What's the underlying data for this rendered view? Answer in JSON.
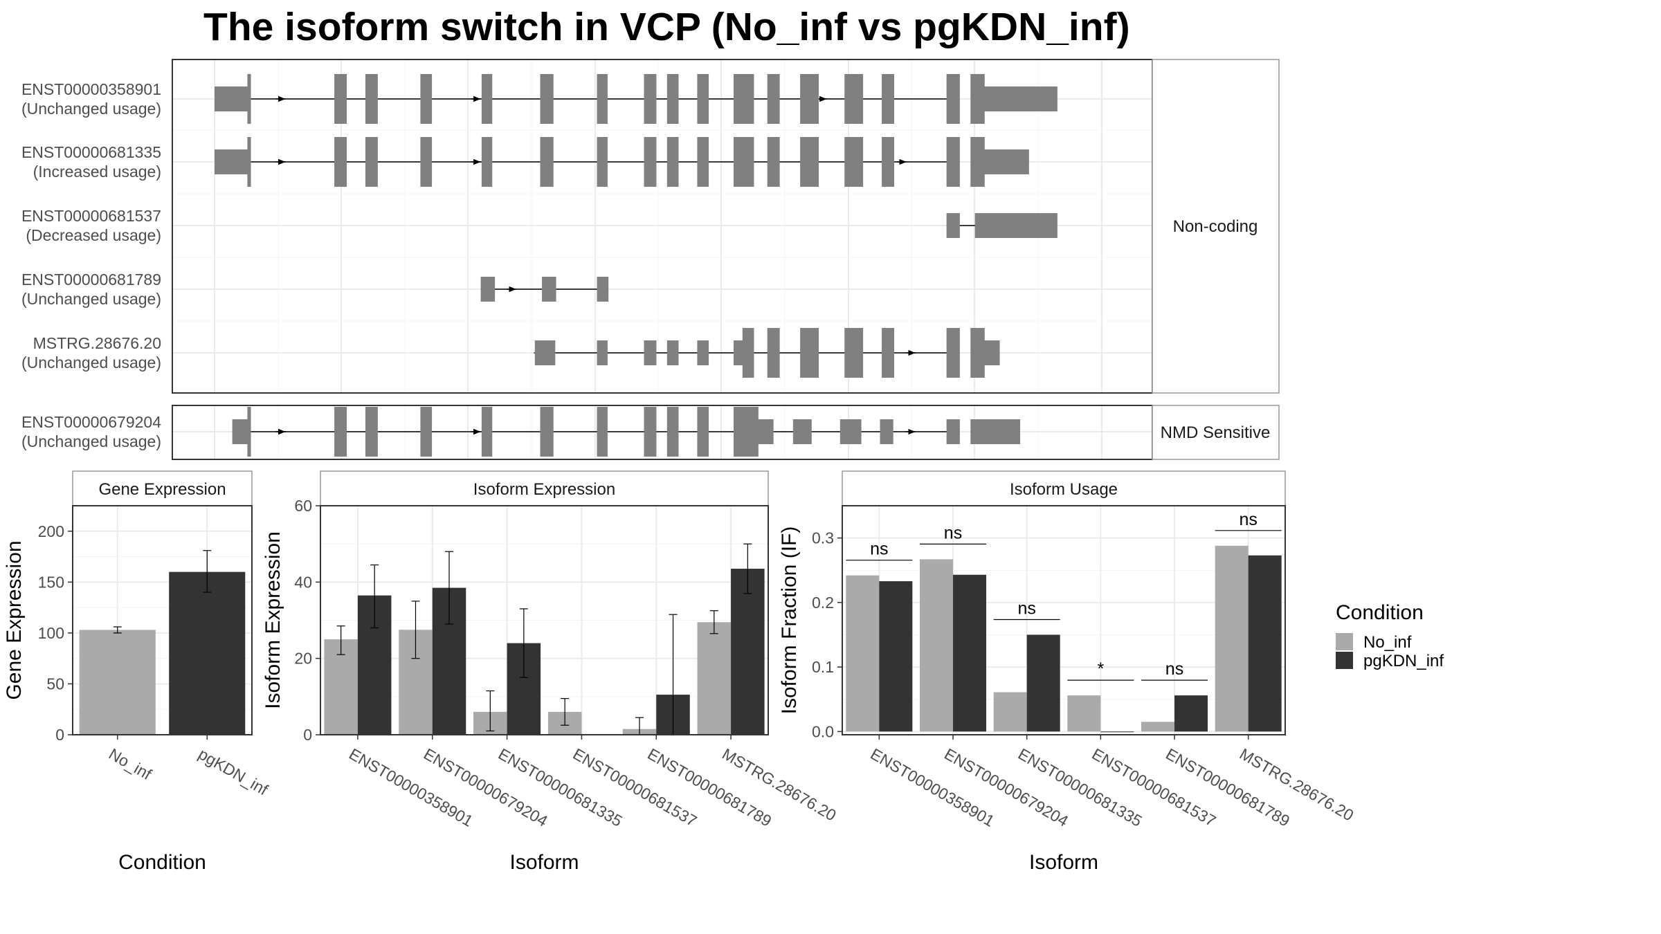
{
  "title": "The isoform switch in VCP (No_inf vs pgKDN_inf)",
  "colors": {
    "no_inf": "#aaaaaa",
    "pgkdn_inf": "#333333",
    "exon": "#808080",
    "grid": "#ebebeb",
    "panel_border": "#333333"
  },
  "structure": {
    "groups": [
      {
        "label": "Non-coding",
        "transcripts": [
          {
            "id": "ENST00000358901",
            "usage": "(Unchanged usage)",
            "span": [
              0.0,
              0.83
            ],
            "exons": [
              [
                0.0,
                0.038,
                "s"
              ],
              [
                0.037,
                0.041,
                "t"
              ],
              [
                0.135,
                0.149,
                "t"
              ],
              [
                0.17,
                0.184,
                "t"
              ],
              [
                0.232,
                0.245,
                "t"
              ],
              [
                0.301,
                0.313,
                "t"
              ],
              [
                0.367,
                0.382,
                "t"
              ],
              [
                0.431,
                0.443,
                "t"
              ],
              [
                0.484,
                0.498,
                "t"
              ],
              [
                0.51,
                0.523,
                "t"
              ],
              [
                0.544,
                0.557,
                "t"
              ],
              [
                0.585,
                0.608,
                "t"
              ],
              [
                0.623,
                0.637,
                "t"
              ],
              [
                0.66,
                0.681,
                "t"
              ],
              [
                0.71,
                0.731,
                "t"
              ],
              [
                0.752,
                0.766,
                "t"
              ],
              [
                0.825,
                0.84,
                "t"
              ],
              [
                0.852,
                0.868,
                "t"
              ],
              [
                0.865,
                0.95,
                "s"
              ]
            ],
            "arrows": [
              0.08,
              0.3,
              0.69
            ]
          },
          {
            "id": "ENST00000681335",
            "usage": "(Increased usage)",
            "span": [
              0.0,
              0.83
            ],
            "exons": [
              [
                0.0,
                0.038,
                "s"
              ],
              [
                0.037,
                0.041,
                "t"
              ],
              [
                0.135,
                0.149,
                "t"
              ],
              [
                0.17,
                0.184,
                "t"
              ],
              [
                0.232,
                0.245,
                "t"
              ],
              [
                0.301,
                0.313,
                "t"
              ],
              [
                0.367,
                0.382,
                "t"
              ],
              [
                0.431,
                0.443,
                "t"
              ],
              [
                0.484,
                0.498,
                "t"
              ],
              [
                0.51,
                0.523,
                "t"
              ],
              [
                0.544,
                0.557,
                "t"
              ],
              [
                0.585,
                0.608,
                "t"
              ],
              [
                0.623,
                0.637,
                "t"
              ],
              [
                0.66,
                0.681,
                "t"
              ],
              [
                0.71,
                0.731,
                "t"
              ],
              [
                0.752,
                0.766,
                "t"
              ],
              [
                0.825,
                0.84,
                "t"
              ],
              [
                0.852,
                0.868,
                "t"
              ],
              [
                0.865,
                0.918,
                "s"
              ]
            ],
            "arrows": [
              0.08,
              0.3,
              0.78
            ]
          },
          {
            "id": "ENST00000681537",
            "usage": "(Decreased usage)",
            "span": [
              0.825,
              0.86
            ],
            "exons": [
              [
                0.825,
                0.84,
                "s"
              ],
              [
                0.857,
                0.95,
                "s"
              ]
            ],
            "arrows": []
          },
          {
            "id": "ENST00000681789",
            "usage": "(Unchanged usage)",
            "span": [
              0.3,
              0.44
            ],
            "exons": [
              [
                0.3,
                0.316,
                "s"
              ],
              [
                0.369,
                0.385,
                "s"
              ],
              [
                0.431,
                0.444,
                "s"
              ]
            ],
            "arrows": [
              0.34
            ]
          },
          {
            "id": "MSTRG.28676.20",
            "usage": "(Unchanged usage)",
            "span": [
              0.36,
              0.83
            ],
            "exons": [
              [
                0.361,
                0.384,
                "s"
              ],
              [
                0.431,
                0.443,
                "s"
              ],
              [
                0.484,
                0.498,
                "s"
              ],
              [
                0.51,
                0.523,
                "s"
              ],
              [
                0.544,
                0.557,
                "s"
              ],
              [
                0.585,
                0.597,
                "s"
              ],
              [
                0.595,
                0.608,
                "t"
              ],
              [
                0.623,
                0.637,
                "t"
              ],
              [
                0.66,
                0.681,
                "t"
              ],
              [
                0.71,
                0.731,
                "t"
              ],
              [
                0.752,
                0.766,
                "t"
              ],
              [
                0.825,
                0.84,
                "t"
              ],
              [
                0.852,
                0.868,
                "t"
              ],
              [
                0.866,
                0.885,
                "s"
              ]
            ],
            "arrows": [
              0.79
            ]
          }
        ]
      },
      {
        "label": "NMD Sensitive",
        "transcripts": [
          {
            "id": "ENST00000679204",
            "usage": "(Unchanged usage)",
            "span": [
              0.02,
              0.83
            ],
            "exons": [
              [
                0.02,
                0.038,
                "s"
              ],
              [
                0.037,
                0.041,
                "t"
              ],
              [
                0.135,
                0.149,
                "t"
              ],
              [
                0.17,
                0.184,
                "t"
              ],
              [
                0.232,
                0.245,
                "t"
              ],
              [
                0.301,
                0.313,
                "t"
              ],
              [
                0.367,
                0.382,
                "t"
              ],
              [
                0.431,
                0.443,
                "t"
              ],
              [
                0.484,
                0.498,
                "t"
              ],
              [
                0.51,
                0.523,
                "t"
              ],
              [
                0.544,
                0.557,
                "t"
              ],
              [
                0.585,
                0.61,
                "t"
              ],
              [
                0.608,
                0.613,
                "t"
              ],
              [
                0.612,
                0.63,
                "s"
              ],
              [
                0.652,
                0.673,
                "s"
              ],
              [
                0.705,
                0.729,
                "s"
              ],
              [
                0.75,
                0.765,
                "s"
              ],
              [
                0.825,
                0.84,
                "s"
              ],
              [
                0.852,
                0.908,
                "s"
              ]
            ],
            "arrows": [
              0.08,
              0.3,
              0.79
            ]
          }
        ]
      }
    ]
  },
  "chart_data": [
    {
      "type": "bar",
      "title": "Gene Expression",
      "xlabel": "Condition",
      "ylabel": "Gene Expression",
      "ylim": [
        0,
        225
      ],
      "yticks": [
        0,
        50,
        100,
        150,
        200
      ],
      "categories": [
        "No_inf",
        "pgKDN_inf"
      ],
      "values": [
        103,
        160
      ],
      "errors": [
        [
          100,
          106
        ],
        [
          140,
          181
        ]
      ]
    },
    {
      "type": "bar",
      "title": "Isoform Expression",
      "xlabel": "Isoform",
      "ylabel": "Isoform Expression",
      "ylim": [
        0,
        60
      ],
      "yticks": [
        0,
        20,
        40,
        60
      ],
      "categories": [
        "ENST00000358901",
        "ENST00000679204",
        "ENST00000681335",
        "ENST00000681537",
        "ENST00000681789",
        "MSTRG.28676.20"
      ],
      "series": [
        {
          "name": "No_inf",
          "values": [
            25,
            27.5,
            6,
            6,
            1.5,
            29.5
          ],
          "errors": [
            [
              21,
              28.5
            ],
            [
              20,
              35
            ],
            [
              1,
              11.5
            ],
            [
              2.5,
              9.5
            ],
            [
              0,
              4.5
            ],
            [
              26.5,
              32.5
            ]
          ]
        },
        {
          "name": "pgKDN_inf",
          "values": [
            36.5,
            38.5,
            24,
            0,
            10.5,
            43.5
          ],
          "errors": [
            [
              28,
              44.5
            ],
            [
              29,
              48
            ],
            [
              15,
              33
            ],
            [
              0,
              0
            ],
            [
              0,
              31.5
            ],
            [
              37,
              50
            ]
          ]
        }
      ]
    },
    {
      "type": "bar",
      "title": "Isoform Usage",
      "xlabel": "Isoform",
      "ylabel": "Isoform Fraction (IF)",
      "ylim": [
        -0.005,
        0.35
      ],
      "yticks": [
        0.0,
        0.1,
        0.2,
        0.3
      ],
      "ytick_labels": [
        "0.0",
        "0.1",
        "0.2",
        "0.3"
      ],
      "categories": [
        "ENST00000358901",
        "ENST00000679204",
        "ENST00000681335",
        "ENST00000681537",
        "ENST00000681789",
        "MSTRG.28676.20"
      ],
      "series": [
        {
          "name": "No_inf",
          "values": [
            0.242,
            0.267,
            0.061,
            0.056,
            0.015,
            0.288
          ]
        },
        {
          "name": "pgKDN_inf",
          "values": [
            0.233,
            0.243,
            0.15,
            0.0,
            0.056,
            0.273
          ]
        }
      ],
      "significance": [
        "ns",
        "ns",
        "ns",
        "*",
        "ns",
        "ns"
      ]
    }
  ],
  "legend": {
    "title": "Condition",
    "items": [
      {
        "label": "No_inf",
        "color": "#aaaaaa"
      },
      {
        "label": "pgKDN_inf",
        "color": "#333333"
      }
    ]
  }
}
